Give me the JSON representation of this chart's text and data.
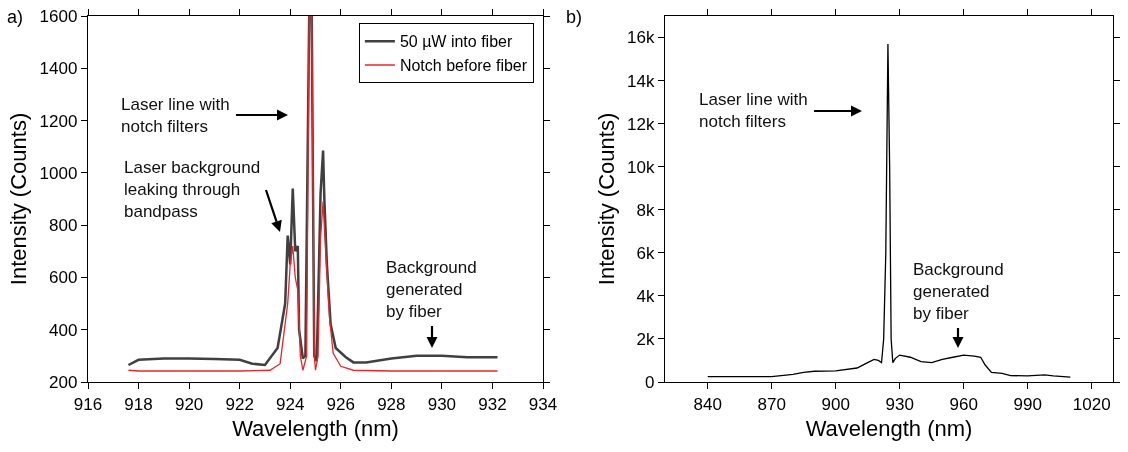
{
  "chart_data": [
    {
      "type": "line",
      "xlabel": "Wavelength (nm)",
      "ylabel": "Intensity (Counts)",
      "legend": "top right",
      "xlim": [
        916,
        934
      ],
      "xticks": [
        916,
        918,
        920,
        922,
        924,
        926,
        928,
        930,
        932,
        934
      ],
      "ylim": [
        200,
        1600
      ],
      "yticks": [
        200,
        400,
        600,
        800,
        1000,
        1200,
        1400,
        1600
      ],
      "annotations": [
        "a)",
        "Laser line with\nnotch filters",
        "Laser background\nleaking through\nbandpass",
        "Background\ngenerated\nby fiber"
      ],
      "series": [
        {
          "name": "50 µW into fiber",
          "color": "#404040",
          "x": [
            917.6,
            918,
            919,
            920,
            921,
            922,
            922.5,
            923,
            923.5,
            923.8,
            923.9,
            924,
            924.1,
            924.2,
            924.3,
            924.35,
            924.5,
            924.6,
            924.75,
            924.85,
            924.95,
            925.05,
            925.15,
            925.2,
            925.3,
            925.35,
            925.45,
            925.6,
            925.8,
            926.2,
            926.5,
            927,
            928,
            929,
            930,
            931,
            932.2
          ],
          "values": [
            265,
            285,
            290,
            290,
            288,
            285,
            270,
            265,
            330,
            500,
            760,
            650,
            940,
            700,
            720,
            400,
            290,
            300,
            1600,
            1600,
            300,
            280,
            700,
            920,
            1085,
            900,
            650,
            420,
            330,
            295,
            275,
            275,
            290,
            300,
            300,
            295,
            295
          ]
        },
        {
          "name": "Notch before fiber",
          "color": "#e8262a",
          "x": [
            917.6,
            918,
            920,
            922,
            923.2,
            923.6,
            923.9,
            924,
            924.1,
            924.2,
            924.3,
            924.4,
            924.5,
            924.65,
            924.75,
            924.85,
            924.95,
            925,
            925.1,
            925.2,
            925.3,
            925.4,
            925.55,
            925.7,
            926,
            926.5,
            928,
            930,
            932.2
          ],
          "values": [
            245,
            242,
            242,
            242,
            245,
            270,
            500,
            650,
            720,
            600,
            550,
            300,
            245,
            300,
            1600,
            1600,
            300,
            245,
            300,
            750,
            890,
            700,
            450,
            310,
            260,
            245,
            242,
            242,
            242
          ]
        }
      ]
    },
    {
      "type": "line",
      "xlabel": "Wavelength (nm)",
      "ylabel": "Intensity (Counts)",
      "xlim": [
        820,
        1030
      ],
      "xticks": [
        840,
        870,
        900,
        930,
        960,
        990,
        1020
      ],
      "ylim": [
        0,
        17000
      ],
      "yticks": [
        0,
        {
          "value": 2000,
          "label": "2k"
        },
        {
          "value": 4000,
          "label": "4k"
        },
        {
          "value": 6000,
          "label": "6k"
        },
        {
          "value": 8000,
          "label": "8k"
        },
        {
          "value": 10000,
          "label": "10k"
        },
        {
          "value": 12000,
          "label": "12k"
        },
        {
          "value": 14000,
          "label": "14k"
        },
        {
          "value": 16000,
          "label": "16k"
        }
      ],
      "annotations": [
        "b)",
        "Laser line with\nnotch filters",
        "Background\ngenerated\nby fiber"
      ],
      "series": [
        {
          "color": "#000000",
          "x": [
            840,
            870,
            880,
            885,
            890,
            900,
            910,
            915,
            918,
            920,
            921.5,
            922.5,
            923.5,
            924.5,
            925.3,
            926,
            926.8,
            928,
            930,
            935,
            940,
            945,
            950,
            955,
            960,
            965,
            968,
            970,
            973,
            978,
            982,
            990,
            998,
            1002,
            1010
          ],
          "values": [
            250,
            250,
            350,
            450,
            500,
            520,
            650,
            900,
            1050,
            1000,
            900,
            2000,
            6000,
            15700,
            10000,
            2000,
            900,
            1100,
            1250,
            1150,
            950,
            900,
            1050,
            1150,
            1250,
            1200,
            1150,
            800,
            450,
            400,
            300,
            280,
            330,
            280,
            230
          ]
        }
      ]
    }
  ]
}
